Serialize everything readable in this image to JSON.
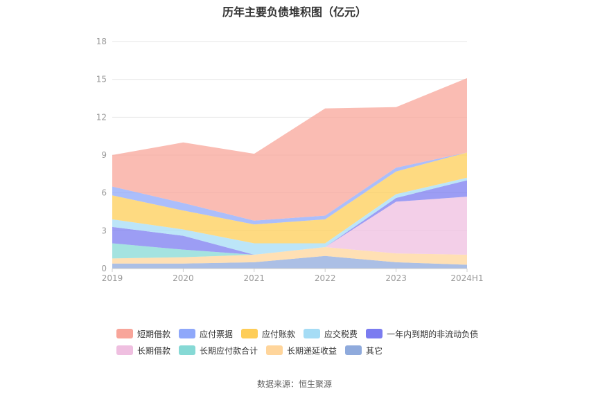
{
  "chart_data": {
    "type": "area",
    "stacked": true,
    "title": "历年主要负债堆积图（亿元）",
    "x": [
      "2019",
      "2020",
      "2021",
      "2022",
      "2023",
      "2024H1"
    ],
    "ylim": [
      0,
      18
    ],
    "yticks": [
      0,
      3,
      6,
      9,
      12,
      15,
      18
    ],
    "grid": true,
    "legend_position": "bottom",
    "series": [
      {
        "name": "其它",
        "color": "#8faadc",
        "values": [
          0.4,
          0.4,
          0.5,
          1.0,
          0.5,
          0.3
        ]
      },
      {
        "name": "长期递延收益",
        "color": "#ffd59b",
        "values": [
          0.4,
          0.5,
          0.6,
          0.7,
          0.7,
          0.8
        ]
      },
      {
        "name": "长期应付款合计",
        "color": "#86d9d5",
        "values": [
          1.2,
          0.6,
          0.0,
          0.0,
          0.0,
          0.0
        ]
      },
      {
        "name": "长期借款",
        "color": "#efbfe0",
        "values": [
          0.0,
          0.0,
          0.0,
          0.0,
          4.1,
          4.6
        ]
      },
      {
        "name": "一年内到期的非流动负债",
        "color": "#7b7cf0",
        "values": [
          1.3,
          1.1,
          0.0,
          0.0,
          0.3,
          1.3
        ]
      },
      {
        "name": "应交税费",
        "color": "#a5dcf5",
        "values": [
          0.6,
          0.5,
          0.9,
          0.3,
          0.3,
          0.2
        ]
      },
      {
        "name": "应付账款",
        "color": "#fecd57",
        "values": [
          1.9,
          1.5,
          1.5,
          1.9,
          1.8,
          2.0
        ]
      },
      {
        "name": "应付票据",
        "color": "#8fa8fa",
        "values": [
          0.7,
          0.6,
          0.3,
          0.3,
          0.3,
          0.0
        ]
      },
      {
        "name": "短期借款",
        "color": "#f8a59a",
        "values": [
          2.5,
          4.8,
          5.3,
          8.5,
          4.8,
          5.9
        ]
      }
    ]
  },
  "legend": {
    "row1": [
      {
        "label": "短期借款",
        "color": "#f8a59a"
      },
      {
        "label": "应付票据",
        "color": "#8fa8fa"
      },
      {
        "label": "应付账款",
        "color": "#fecd57"
      },
      {
        "label": "应交税费",
        "color": "#a5dcf5"
      },
      {
        "label": "一年内到期的非流动负债",
        "color": "#7b7cf0"
      }
    ],
    "row2": [
      {
        "label": "长期借款",
        "color": "#efbfe0"
      },
      {
        "label": "长期应付款合计",
        "color": "#86d9d5"
      },
      {
        "label": "长期递延收益",
        "color": "#ffd59b"
      },
      {
        "label": "其它",
        "color": "#8faadc"
      }
    ]
  },
  "source": "数据来源：恒生聚源"
}
